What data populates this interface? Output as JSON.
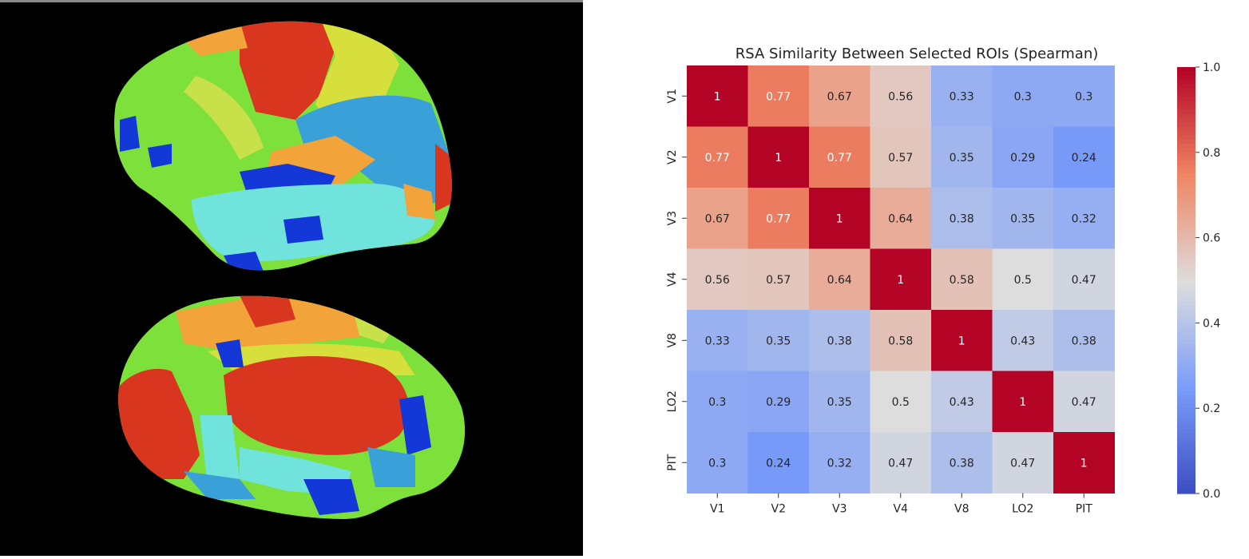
{
  "chart_data": {
    "type": "heatmap",
    "title": "RSA Similarity Between Selected ROIs (Spearman)",
    "rows": [
      "V1",
      "V2",
      "V3",
      "V4",
      "V8",
      "LO2",
      "PIT"
    ],
    "cols": [
      "V1",
      "V2",
      "V3",
      "V4",
      "V8",
      "LO2",
      "PIT"
    ],
    "values": [
      [
        1,
        0.77,
        0.67,
        0.56,
        0.33,
        0.3,
        0.3
      ],
      [
        0.77,
        1,
        0.77,
        0.57,
        0.35,
        0.29,
        0.24
      ],
      [
        0.67,
        0.77,
        1,
        0.64,
        0.38,
        0.35,
        0.32
      ],
      [
        0.56,
        0.57,
        0.64,
        1,
        0.58,
        0.5,
        0.47
      ],
      [
        0.33,
        0.35,
        0.38,
        0.58,
        1,
        0.43,
        0.38
      ],
      [
        0.3,
        0.29,
        0.35,
        0.5,
        0.43,
        1,
        0.47
      ],
      [
        0.3,
        0.24,
        0.32,
        0.47,
        0.38,
        0.47,
        1
      ]
    ],
    "colormap": "coolwarm",
    "vmin": 0.0,
    "vmax": 1.0,
    "colorbar_ticks": [
      "0.0",
      "0.2",
      "0.4",
      "0.6",
      "0.8",
      "1.0"
    ]
  },
  "brain_image": {
    "description_colors": [
      "#7ee03a",
      "#f2a33a",
      "#d9361f",
      "#c8e04a",
      "#3aa0d8",
      "#1437d8",
      "#6fe3dc"
    ]
  }
}
